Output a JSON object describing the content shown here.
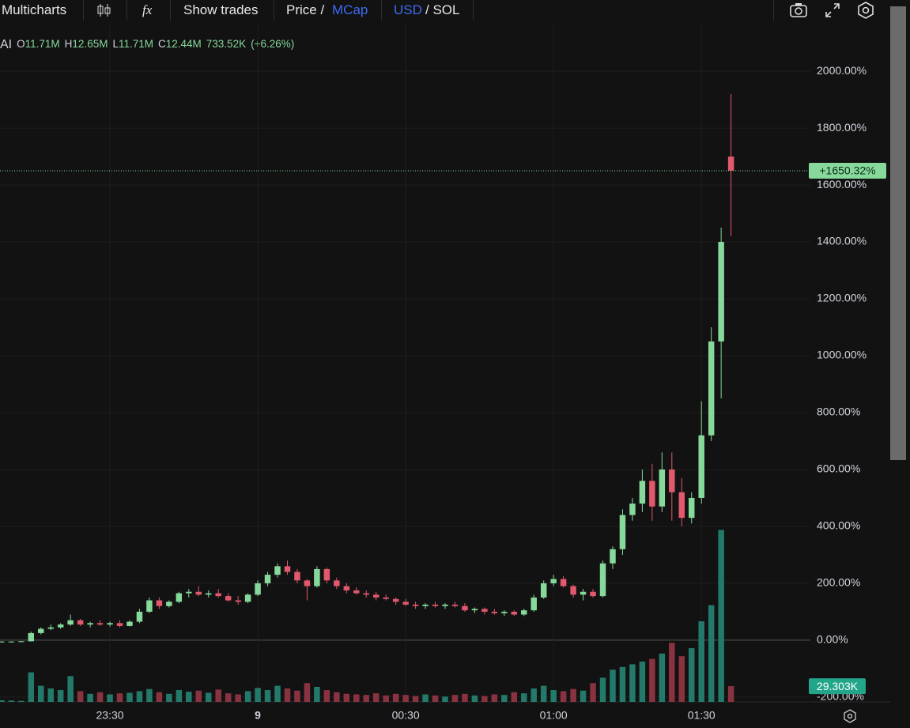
{
  "toolbar": {
    "app": "Multicharts",
    "indicators": "fx",
    "show_trades": "Show trades",
    "price": "Price /",
    "mcap": "MCap",
    "usd": "USD",
    "sol": "/ SOL"
  },
  "legend": {
    "symbol": "AI",
    "items": [
      {
        "key": "O",
        "value": "11.71M"
      },
      {
        "key": "H",
        "value": "12.65M"
      },
      {
        "key": "L",
        "value": "11.71M"
      },
      {
        "key": "C",
        "value": "12.44M"
      }
    ],
    "volume": "733.52K",
    "change": "(+6.26%)"
  },
  "chart_data": {
    "type": "candlestick",
    "x": [
      8,
      10,
      12,
      14,
      16,
      18,
      20,
      22,
      24,
      26,
      28,
      30,
      32,
      34,
      36,
      38,
      40,
      42,
      44,
      46,
      48,
      50,
      52,
      54,
      56,
      58,
      60,
      62,
      64,
      66,
      68,
      70,
      72,
      74,
      76,
      78,
      80,
      82,
      84,
      86,
      88,
      90,
      92,
      94,
      96,
      98,
      100,
      102,
      104,
      106,
      108,
      110,
      112,
      114,
      116,
      118,
      120,
      122,
      124,
      126,
      128,
      130,
      132,
      134,
      136,
      138,
      140,
      142,
      144,
      146,
      148,
      150,
      152,
      154,
      156
    ],
    "open": [
      -5,
      -5,
      -5,
      -4,
      25,
      40,
      45,
      55,
      70,
      55,
      60,
      55,
      60,
      50,
      65,
      100,
      140,
      120,
      135,
      165,
      170,
      160,
      165,
      155,
      140,
      135,
      160,
      200,
      230,
      260,
      240,
      210,
      190,
      250,
      210,
      190,
      175,
      165,
      160,
      150,
      145,
      135,
      125,
      120,
      125,
      120,
      125,
      120,
      105,
      110,
      100,
      95,
      100,
      90,
      105,
      150,
      200,
      215,
      190,
      160,
      170,
      155,
      270,
      320,
      440,
      480,
      560,
      470,
      600,
      520,
      430,
      500,
      720,
      1050,
      1700
    ],
    "high": [
      -3,
      -4,
      -3,
      30,
      45,
      55,
      60,
      90,
      75,
      65,
      70,
      65,
      70,
      70,
      110,
      150,
      150,
      140,
      170,
      180,
      190,
      175,
      180,
      165,
      155,
      165,
      210,
      240,
      270,
      280,
      250,
      215,
      260,
      255,
      220,
      200,
      185,
      175,
      170,
      160,
      150,
      145,
      135,
      130,
      135,
      130,
      135,
      130,
      115,
      115,
      110,
      105,
      105,
      110,
      160,
      210,
      230,
      225,
      195,
      180,
      180,
      280,
      330,
      460,
      500,
      600,
      620,
      660,
      660,
      570,
      520,
      840,
      1100,
      1450,
      1920
    ],
    "low": [
      -8,
      -7,
      -6,
      -5,
      20,
      35,
      40,
      50,
      50,
      45,
      50,
      48,
      45,
      48,
      60,
      95,
      110,
      115,
      130,
      150,
      155,
      150,
      150,
      135,
      125,
      130,
      155,
      190,
      220,
      230,
      200,
      140,
      185,
      200,
      180,
      165,
      160,
      150,
      140,
      140,
      125,
      120,
      110,
      110,
      115,
      110,
      115,
      100,
      95,
      90,
      90,
      85,
      85,
      85,
      100,
      145,
      190,
      185,
      150,
      140,
      150,
      150,
      250,
      300,
      420,
      450,
      420,
      450,
      420,
      400,
      410,
      480,
      700,
      850,
      1420
    ],
    "close": [
      -5,
      -5,
      -4,
      25,
      40,
      45,
      55,
      70,
      55,
      60,
      55,
      60,
      50,
      65,
      100,
      140,
      120,
      135,
      165,
      170,
      160,
      165,
      155,
      140,
      135,
      160,
      200,
      230,
      260,
      240,
      210,
      190,
      250,
      210,
      190,
      175,
      165,
      160,
      150,
      145,
      135,
      125,
      120,
      125,
      120,
      125,
      120,
      105,
      110,
      100,
      95,
      100,
      90,
      105,
      150,
      200,
      215,
      190,
      160,
      170,
      155,
      270,
      320,
      440,
      480,
      560,
      470,
      600,
      520,
      430,
      500,
      720,
      1050,
      1400,
      1650.32
    ],
    "volume": [
      3000,
      2500,
      2000,
      55000,
      30000,
      25000,
      22000,
      48000,
      20000,
      15000,
      18000,
      14000,
      16000,
      17000,
      20000,
      24000,
      18000,
      15000,
      22000,
      19000,
      21000,
      17000,
      23000,
      16000,
      14000,
      20000,
      26000,
      22000,
      30000,
      25000,
      21000,
      35000,
      28000,
      22000,
      18000,
      15000,
      14000,
      13000,
      16000,
      12000,
      15000,
      13000,
      11000,
      14000,
      12000,
      10000,
      13000,
      15000,
      12000,
      11000,
      14000,
      13000,
      18000,
      16000,
      25000,
      30000,
      22000,
      20000,
      24000,
      21000,
      35000,
      45000,
      60000,
      65000,
      70000,
      75000,
      80000,
      90000,
      110000,
      85000,
      100000,
      150000,
      180000,
      320000,
      29303
    ],
    "xlim": [
      7.7,
      172.1
    ],
    "ylim": [
      -217,
      2167
    ],
    "volume_ylim": [
      0,
      350000
    ],
    "xticks": [
      {
        "value": 30,
        "label": "23:30"
      },
      {
        "value": 60,
        "label": "9"
      },
      {
        "value": 90,
        "label": "00:30"
      },
      {
        "value": 120,
        "label": "01:00"
      },
      {
        "value": 150,
        "label": "01:30"
      }
    ],
    "yticks": [
      {
        "value": -200,
        "label": "-200.00%"
      },
      {
        "value": 0,
        "label": "0.00%"
      },
      {
        "value": 200,
        "label": "200.00%"
      },
      {
        "value": 400,
        "label": "400.00%"
      },
      {
        "value": 600,
        "label": "600.00%"
      },
      {
        "value": 800,
        "label": "800.00%"
      },
      {
        "value": 1000,
        "label": "1000.00%"
      },
      {
        "value": 1200,
        "label": "1200.00%"
      },
      {
        "value": 1400,
        "label": "1400.00%"
      },
      {
        "value": 1600,
        "label": "1600.00%"
      },
      {
        "value": 1800,
        "label": "1800.00%"
      },
      {
        "value": 2000,
        "label": "2000.00%"
      }
    ],
    "last_price": {
      "value": 1650.32,
      "label": "+1650.32%"
    },
    "last_volume": {
      "value": 29303,
      "label": "29.303K"
    },
    "up_color": "#86d99b",
    "down_color": "#e2586c",
    "volume_up_color": "#237a6a",
    "volume_down_color": "#8a3340",
    "grid": true
  }
}
